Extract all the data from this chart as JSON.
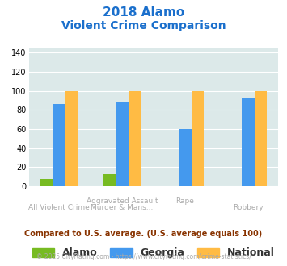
{
  "title_line1": "2018 Alamo",
  "title_line2": "Violent Crime Comparison",
  "series": {
    "Alamo": [
      8,
      13,
      0,
      0
    ],
    "Georgia": [
      86,
      88,
      60,
      92
    ],
    "National": [
      100,
      100,
      100,
      100
    ]
  },
  "colors": {
    "Alamo": "#77bb22",
    "Georgia": "#4499ee",
    "National": "#ffbb44"
  },
  "top_labels": [
    "",
    "Aggravated Assault",
    "Rape",
    ""
  ],
  "bot_labels": [
    "All Violent Crime",
    "Murder & Mans...",
    "",
    "Robbery"
  ],
  "ylim": [
    0,
    145
  ],
  "yticks": [
    0,
    20,
    40,
    60,
    80,
    100,
    120,
    140
  ],
  "plot_bg": "#dce9e9",
  "title_color": "#1a6fcc",
  "label_color": "#aaaaaa",
  "subtitle_note": "Compared to U.S. average. (U.S. average equals 100)",
  "subtitle_note_color": "#883300",
  "footer": "© 2025 CityRating.com - https://www.cityrating.com/crime-statistics/",
  "footer_color": "#aaaaaa",
  "footer_link_color": "#4499ee"
}
